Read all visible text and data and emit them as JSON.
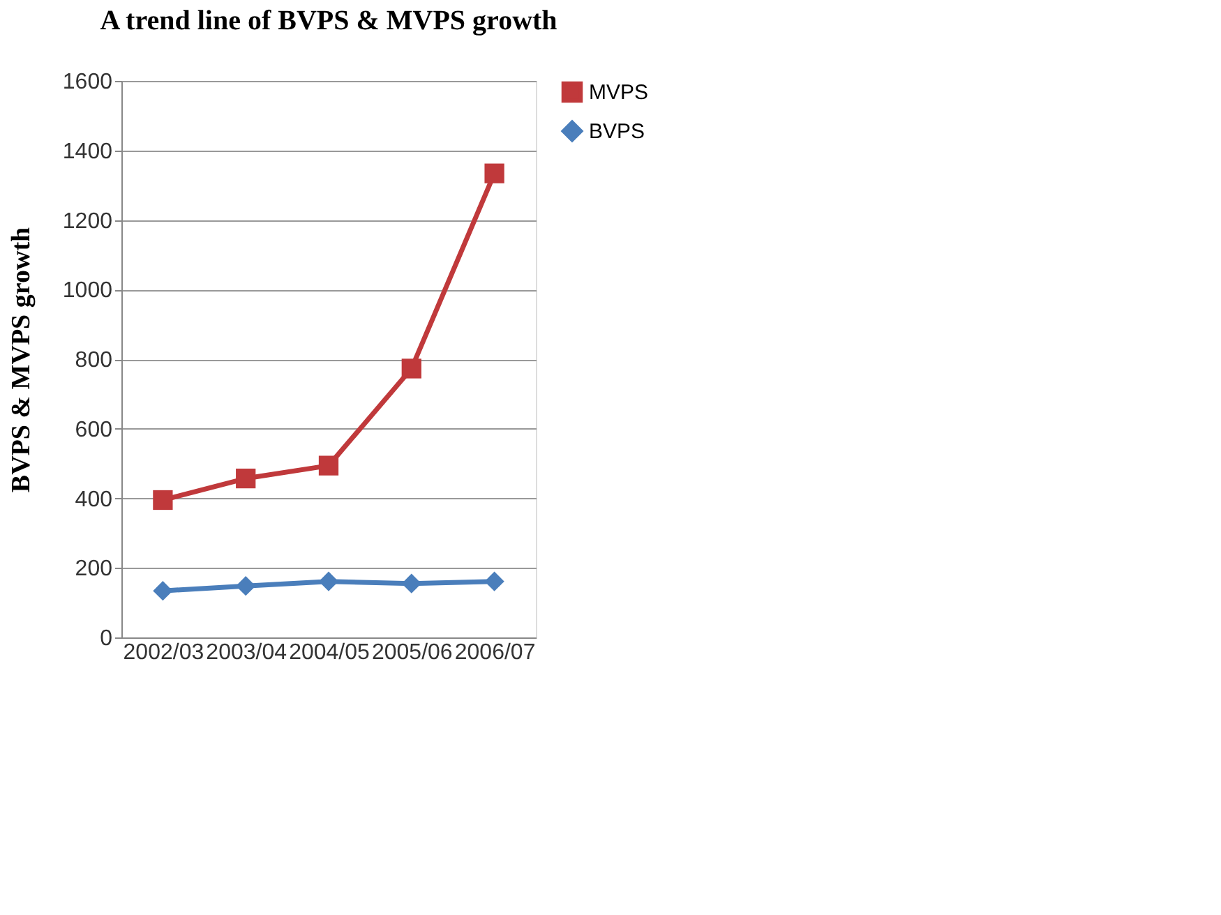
{
  "chart_data": {
    "type": "line",
    "title": "A trend line of BVPS & MVPS growth",
    "ylabel": "BVPS & MVPS growth",
    "categories": [
      "2002/03",
      "2003/04",
      "2004/05",
      "2005/06",
      "2006/07"
    ],
    "series": [
      {
        "name": "MVPS",
        "color": "#c0393b",
        "marker": "square",
        "values": [
          395,
          457,
          494,
          773,
          1334
        ]
      },
      {
        "name": "BVPS",
        "color": "#4a7ebb",
        "marker": "diamond",
        "values": [
          134,
          148,
          161,
          155,
          161
        ]
      }
    ],
    "ylim": [
      0,
      1600
    ],
    "yticks": [
      0,
      200,
      400,
      600,
      800,
      1000,
      1200,
      1400,
      1600
    ],
    "grid": "y",
    "legend": "right",
    "line_style": "solid"
  }
}
